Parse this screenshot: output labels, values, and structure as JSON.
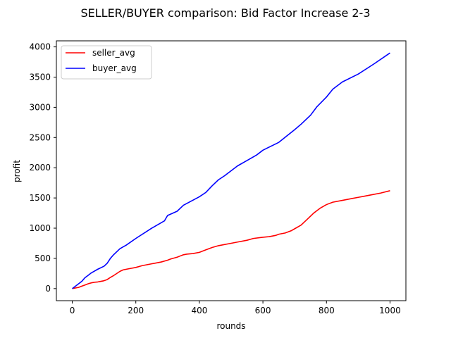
{
  "chart_data": {
    "type": "line",
    "title": "SELLER/BUYER comparison: Bid Factor Increase 2-3",
    "xlabel": "rounds",
    "ylabel": "profit",
    "xlim": [
      -50,
      1050
    ],
    "ylim": [
      -200,
      4100
    ],
    "xticks": [
      0,
      200,
      400,
      600,
      800,
      1000
    ],
    "yticks": [
      0,
      500,
      1000,
      1500,
      2000,
      2500,
      3000,
      3500,
      4000
    ],
    "legend_position": "top-left",
    "grid": false,
    "series": [
      {
        "name": "seller_avg",
        "color": "#ff0000",
        "x": [
          0,
          20,
          30,
          40,
          50,
          60,
          70,
          80,
          90,
          100,
          110,
          120,
          130,
          140,
          150,
          160,
          180,
          200,
          220,
          250,
          260,
          280,
          300,
          310,
          330,
          350,
          360,
          380,
          400,
          420,
          440,
          460,
          480,
          500,
          520,
          550,
          570,
          600,
          620,
          640,
          650,
          670,
          690,
          700,
          720,
          740,
          750,
          760,
          770,
          780,
          800,
          820,
          850,
          880,
          900,
          920,
          950,
          970,
          1000
        ],
        "y": [
          0,
          20,
          40,
          60,
          80,
          95,
          105,
          110,
          120,
          130,
          150,
          185,
          215,
          250,
          285,
          310,
          330,
          350,
          380,
          410,
          420,
          440,
          470,
          490,
          520,
          560,
          570,
          580,
          600,
          640,
          680,
          710,
          730,
          750,
          770,
          800,
          830,
          850,
          860,
          880,
          900,
          920,
          960,
          990,
          1050,
          1150,
          1200,
          1250,
          1290,
          1330,
          1390,
          1430,
          1460,
          1490,
          1510,
          1530,
          1560,
          1580,
          1620
        ]
      },
      {
        "name": "buyer_avg",
        "color": "#0000ff",
        "x": [
          0,
          20,
          30,
          40,
          50,
          60,
          80,
          100,
          110,
          120,
          130,
          150,
          170,
          200,
          250,
          290,
          300,
          330,
          350,
          400,
          420,
          440,
          460,
          480,
          500,
          520,
          550,
          580,
          600,
          650,
          700,
          720,
          750,
          770,
          800,
          820,
          850,
          900,
          950,
          1000
        ],
        "y": [
          0,
          80,
          120,
          180,
          220,
          260,
          320,
          370,
          420,
          500,
          560,
          660,
          720,
          830,
          1000,
          1120,
          1210,
          1280,
          1380,
          1520,
          1590,
          1700,
          1800,
          1870,
          1950,
          2030,
          2120,
          2210,
          2290,
          2420,
          2630,
          2720,
          2870,
          3010,
          3170,
          3300,
          3420,
          3550,
          3720,
          3900
        ]
      }
    ]
  }
}
